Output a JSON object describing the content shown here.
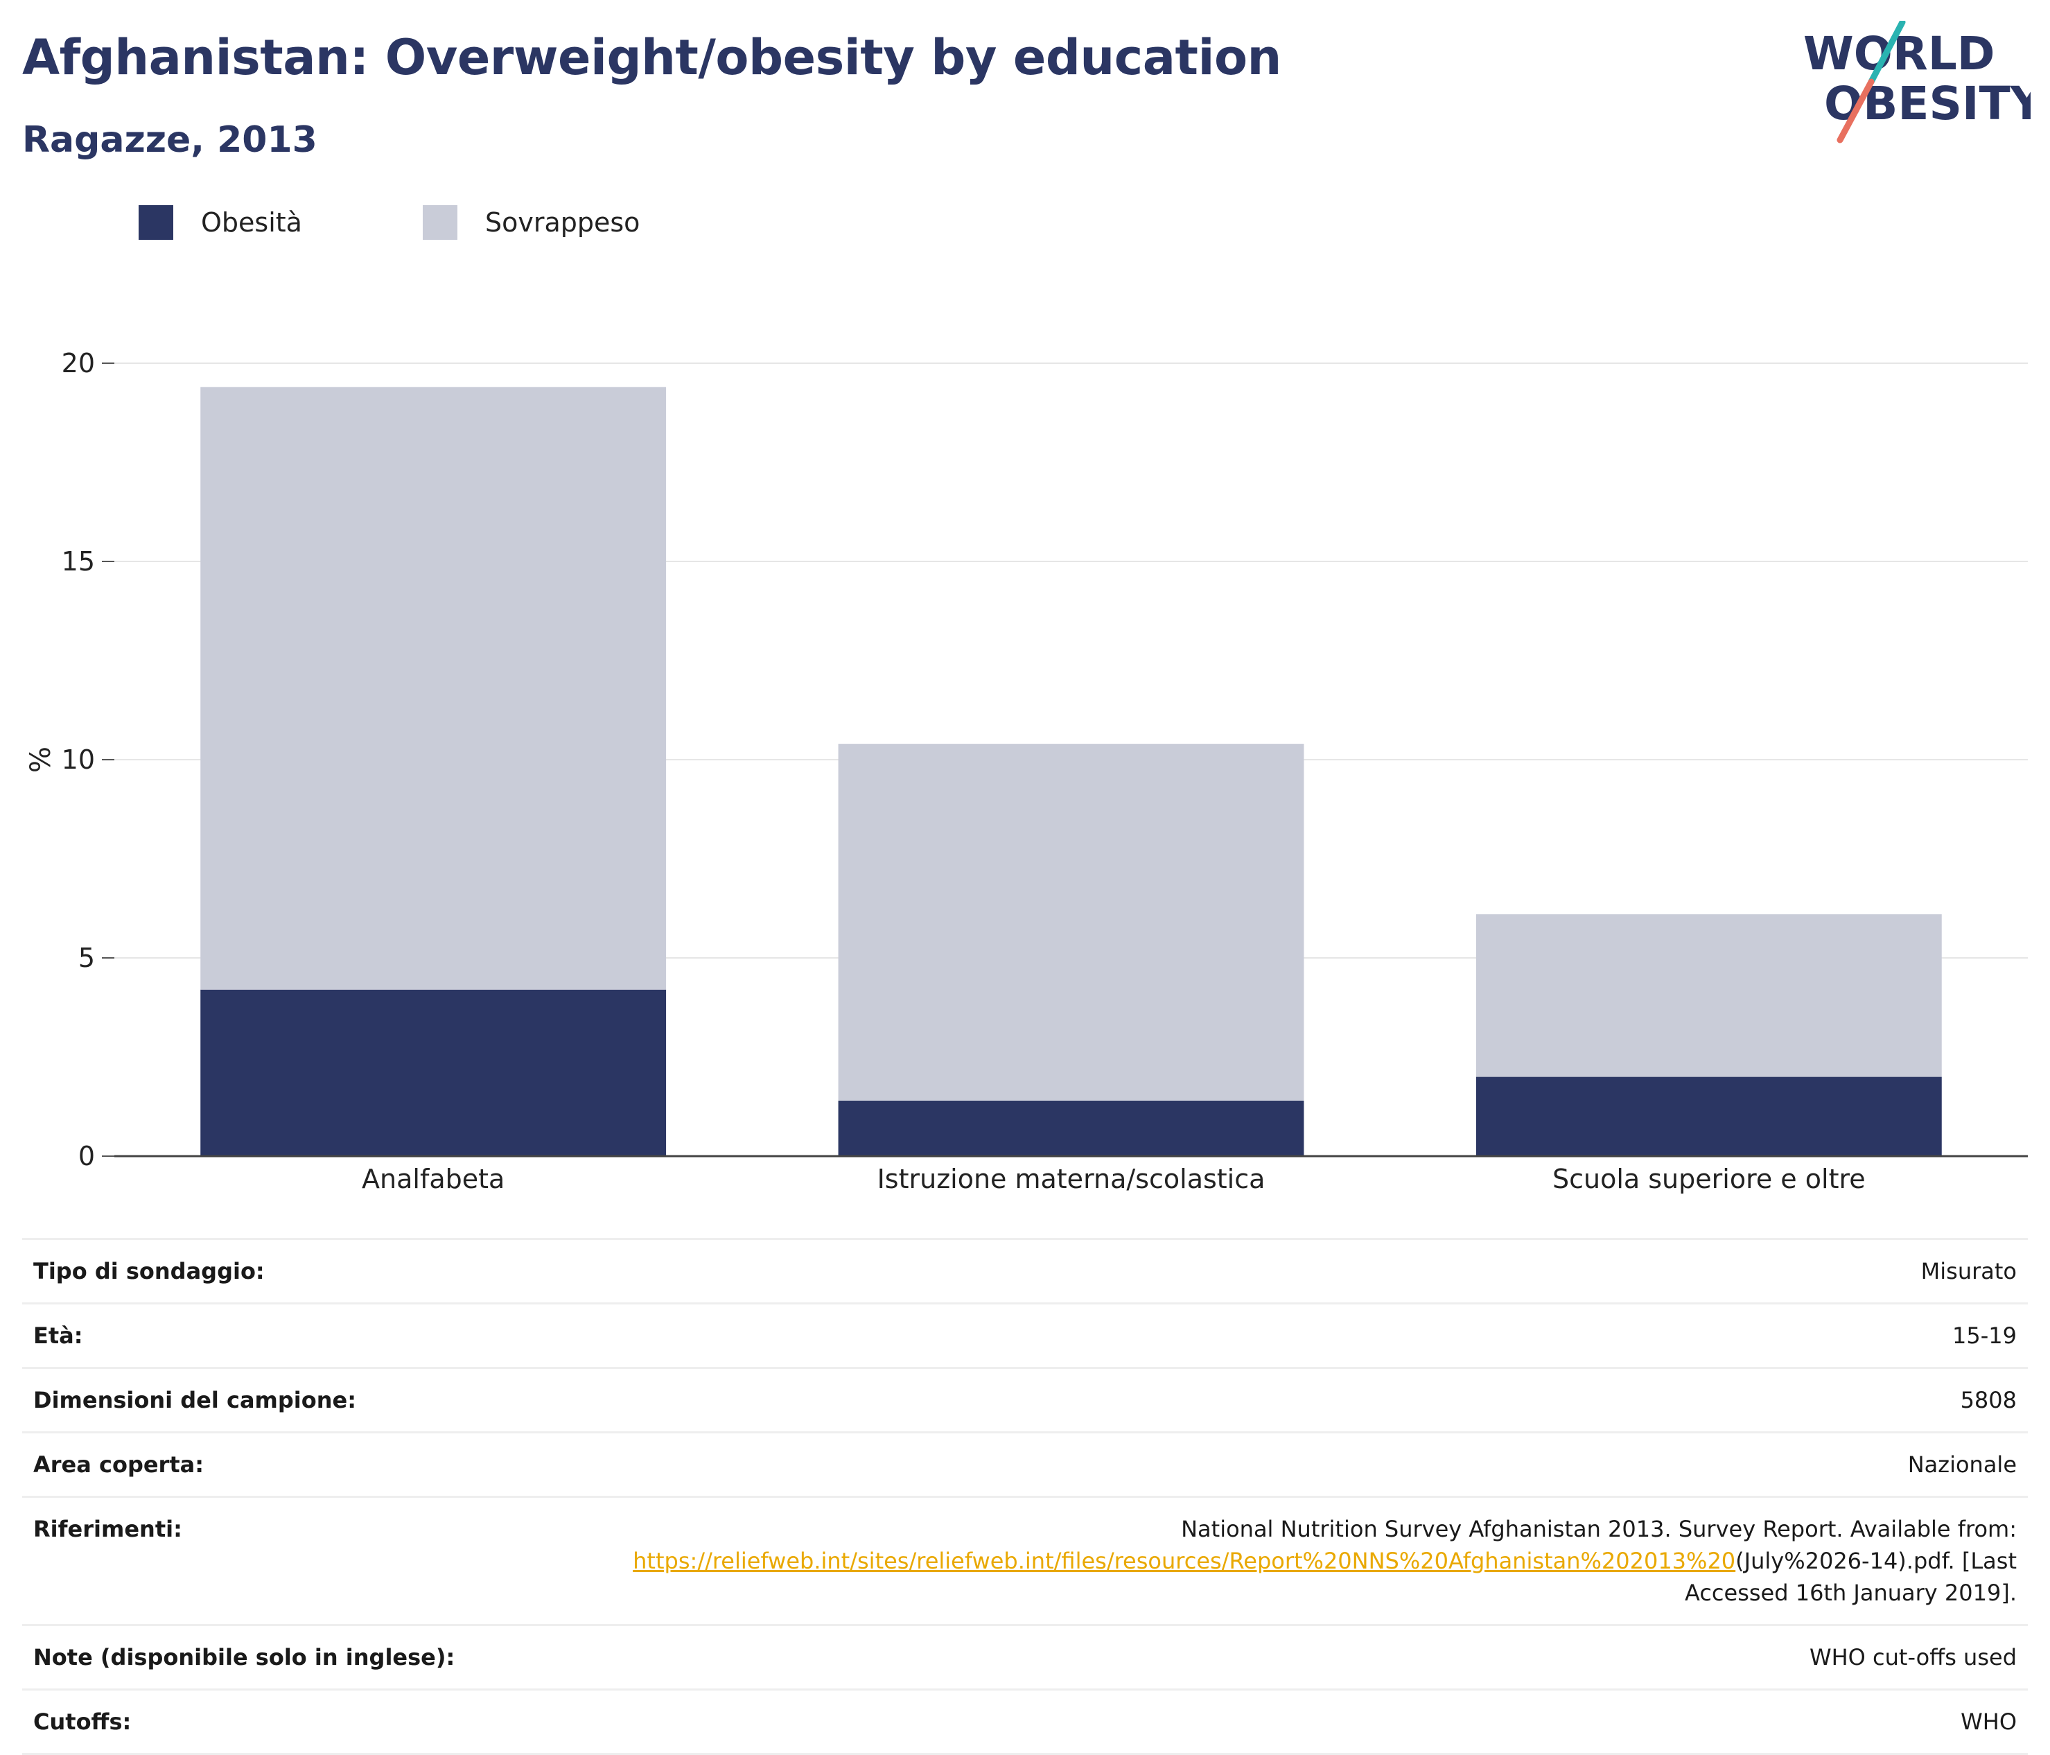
{
  "header": {
    "title": "Afghanistan: Overweight/obesity by education",
    "subtitle": "Ragazze, 2013"
  },
  "logo": {
    "line1": "WORLD",
    "line2": "OBESITY",
    "colors": {
      "text": "#2b3663",
      "slash_top": "#2ab3b1",
      "slash_bottom": "#e8705f"
    }
  },
  "legend": [
    {
      "label": "Obesità",
      "color": "#2b3663"
    },
    {
      "label": "Sovrappeso",
      "color": "#c9ccd8"
    }
  ],
  "chart_data": {
    "type": "bar",
    "stacked": true,
    "categories": [
      "Analfabeta",
      "Istruzione materna/scolastica",
      "Scuola superiore e oltre"
    ],
    "series": [
      {
        "name": "Obesità",
        "values": [
          4.2,
          1.4,
          2.0
        ],
        "color": "#2b3663"
      },
      {
        "name": "Sovrappeso",
        "values": [
          15.2,
          9.0,
          4.1
        ],
        "color": "#c9ccd8"
      }
    ],
    "title": "",
    "xlabel": "",
    "ylabel": "%",
    "ylim": [
      0,
      20
    ],
    "yticks": [
      0,
      5,
      10,
      15,
      20
    ],
    "grid": true,
    "legend_position": "top-left"
  },
  "info": {
    "rows": [
      {
        "label": "Tipo di sondaggio:",
        "value": "Misurato"
      },
      {
        "label": "Età:",
        "value": "15-19"
      },
      {
        "label": "Dimensioni del campione:",
        "value": "5808"
      },
      {
        "label": "Area coperta:",
        "value": "Nazionale"
      }
    ],
    "references": {
      "label": "Riferimenti:",
      "text_before": "National Nutrition Survey Afghanistan 2013. Survey Report. Available from:",
      "link": "https://reliefweb.int/sites/reliefweb.int/files/resources/Report%20NNS%20Afghanistan%202013%20",
      "text_after": "(July%2026-14).pdf. [Last Accessed 16th January 2019]."
    },
    "rows_after": [
      {
        "label": "Note (disponibile solo in inglese):",
        "value": "WHO cut-offs used"
      },
      {
        "label": "Cutoffs:",
        "value": "WHO"
      }
    ]
  }
}
